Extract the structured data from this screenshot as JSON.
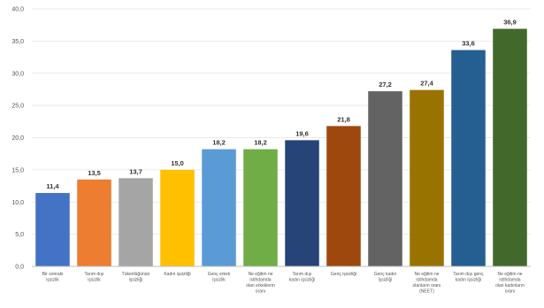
{
  "chart_data": {
    "type": "bar",
    "title": "",
    "xlabel": "",
    "ylabel": "",
    "ylim": [
      0,
      40
    ],
    "yticks": [
      "0,0",
      "5,0",
      "10,0",
      "15,0",
      "20,0",
      "25,0",
      "30,0",
      "35,0",
      "40,0"
    ],
    "grid": true,
    "legend": "none",
    "categories": [
      [
        "Bir sonraki",
        "işsizlik"
      ],
      [
        "Tarım dışı",
        "işsizlik"
      ],
      [
        "Tükenlüğünün",
        "işsizliği"
      ],
      [
        "Kadın işsizliği"
      ],
      [
        "Genç erkek",
        "işsizlik"
      ],
      [
        "Ne eğitim ne",
        "istihdamda",
        "olan erkeklerin",
        "oranı"
      ],
      [
        "Tarım dışı",
        "kadın işsizliği"
      ],
      [
        "Genç işsizliği"
      ],
      [
        "Genç kadın",
        "işsizliği"
      ],
      [
        "Ne eğitim ne",
        "istihdamda",
        "olanların oranı",
        "(NEET)"
      ],
      [
        "Tarım dışı genç",
        "kadın işsizliği"
      ],
      [
        "Ne eğitim ne",
        "istihdamda",
        "olan kadınların",
        "oranı"
      ]
    ],
    "values": [
      11.4,
      13.5,
      13.7,
      15.0,
      18.2,
      18.2,
      19.6,
      21.8,
      27.2,
      27.4,
      33.6,
      36.9
    ],
    "value_labels": [
      "11,4",
      "13,5",
      "13,7",
      "15,0",
      "18,2",
      "18,2",
      "19,6",
      "21,8",
      "27,2",
      "27,4",
      "33,6",
      "36,9"
    ],
    "colors": [
      "#4472c4",
      "#ed7d31",
      "#a5a5a5",
      "#ffc000",
      "#5b9bd5",
      "#70ad47",
      "#264478",
      "#9e480e",
      "#636363",
      "#997300",
      "#255e91",
      "#43682b"
    ]
  }
}
